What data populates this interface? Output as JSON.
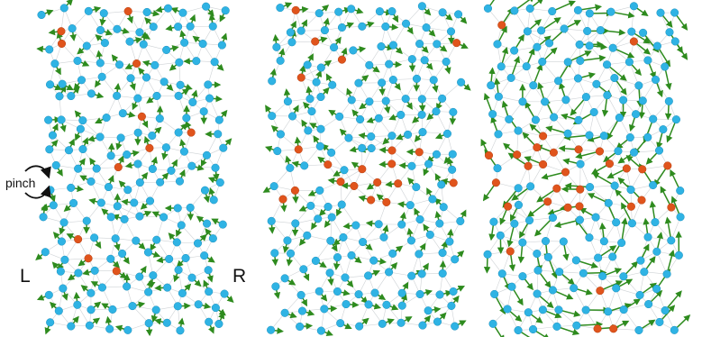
{
  "labels": {
    "pinch": "pinch",
    "left": "L",
    "right": "R"
  },
  "colors": {
    "node": "#2fb3e4",
    "node_highlight": "#e0541c",
    "arrow": "#2e8b1e",
    "edge": "#cfd3d6"
  },
  "panels": [
    {
      "name": "panel-1-disordered",
      "pattern": "random"
    },
    {
      "name": "panel-2-partial-vortices",
      "pattern": "two-vortices-weak"
    },
    {
      "name": "panel-3-vortex-pair",
      "pattern": "two-vortices-strong"
    }
  ]
}
